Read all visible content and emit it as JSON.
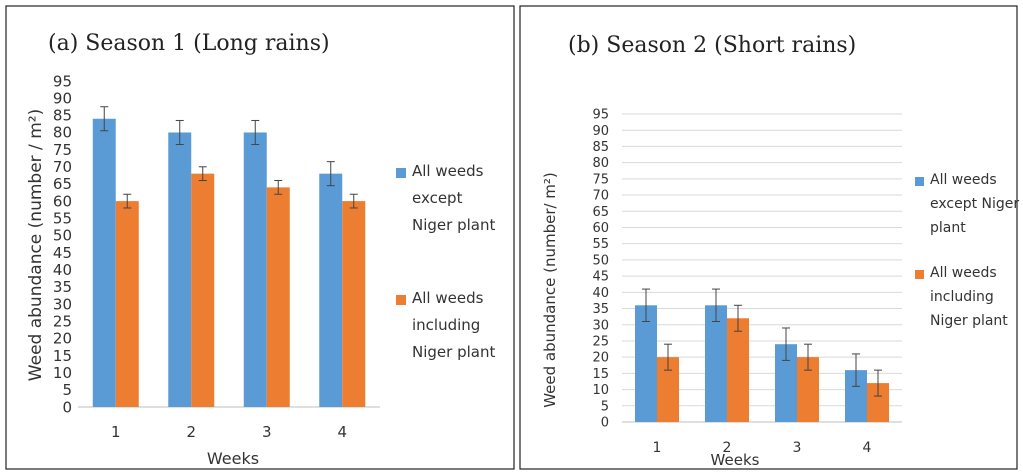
{
  "chart_data": [
    {
      "type": "bar",
      "title": "(a) Season 1 (Long rains)",
      "xlabel": "Weeks",
      "ylabel": "Weed abundance (number / m²)",
      "categories": [
        "1",
        "2",
        "3",
        "4"
      ],
      "ylim": [
        0,
        95
      ],
      "yticks": [
        0,
        5,
        10,
        15,
        20,
        25,
        30,
        35,
        40,
        45,
        50,
        55,
        60,
        65,
        70,
        75,
        80,
        85,
        90,
        95
      ],
      "grid": false,
      "legend_position": "right",
      "series": [
        {
          "name": "All weeds except Niger plant",
          "values": [
            84,
            80,
            80,
            68
          ],
          "errors": [
            3.5,
            3.5,
            3.5,
            3.5
          ]
        },
        {
          "name": "All weeds including Niger plant",
          "values": [
            60,
            68,
            64,
            60
          ],
          "errors": [
            2,
            2,
            2,
            2
          ]
        }
      ]
    },
    {
      "type": "bar",
      "title": "(b) Season 2 (Short rains)",
      "xlabel": "Weeks",
      "ylabel": "Weed abundance (number/ m²)",
      "categories": [
        "1",
        "2",
        "3",
        "4"
      ],
      "ylim": [
        0,
        95
      ],
      "yticks": [
        0,
        5,
        10,
        15,
        20,
        25,
        30,
        35,
        40,
        45,
        50,
        55,
        60,
        65,
        70,
        75,
        80,
        85,
        90,
        95
      ],
      "grid": true,
      "legend_position": "right",
      "series": [
        {
          "name": "All weeds except Niger plant",
          "values": [
            36,
            36,
            24,
            16
          ],
          "errors": [
            5,
            5,
            5,
            5
          ]
        },
        {
          "name": "All weeds including Niger plant",
          "values": [
            20,
            32,
            20,
            12
          ],
          "errors": [
            4,
            4,
            4,
            4
          ]
        }
      ]
    }
  ],
  "colors": {
    "series1": "#5b9bd5",
    "series2": "#ed7d31",
    "error": "#444444",
    "grid": "#d9d9d9",
    "border": "#222222"
  },
  "legend_a": [
    {
      "lines": [
        "All weeds",
        "except",
        "Niger plant"
      ]
    },
    {
      "lines": [
        "All weeds",
        "including",
        "Niger plant"
      ]
    }
  ],
  "legend_b": [
    {
      "lines": [
        "All weeds",
        "except Niger",
        "plant"
      ]
    },
    {
      "lines": [
        "All weeds",
        "including",
        "Niger plant"
      ]
    }
  ]
}
